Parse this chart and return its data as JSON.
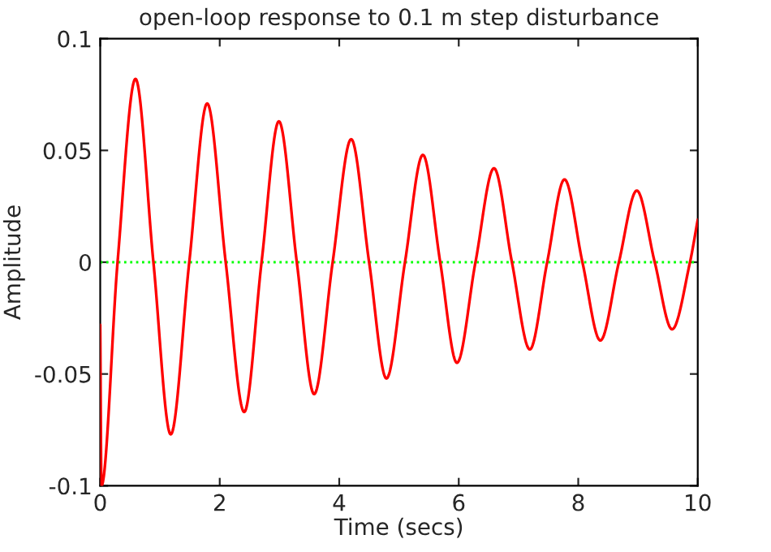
{
  "chart_data": {
    "type": "line",
    "title": "open-loop response to 0.1 m step disturbance",
    "xlabel": "Time (secs)",
    "ylabel": "Amplitude",
    "xlim": [
      0,
      10
    ],
    "xticks": [
      0,
      2,
      4,
      6,
      8,
      10
    ],
    "ylim": [
      -0.1,
      0.1
    ],
    "yticks": [
      -0.1,
      -0.05,
      0,
      0.05,
      0.1
    ],
    "grid": false,
    "line_style": "solid",
    "ref_lines": [
      {
        "axis": "y",
        "value": 0,
        "label": null,
        "color": "#00ff00",
        "line_style": "dotted"
      }
    ],
    "series": [
      {
        "color": "#ff0000",
        "x": [
          0,
          0.02,
          0.29,
          0.59,
          0.89,
          1.18,
          1.49,
          1.79,
          2.1,
          2.41,
          2.7,
          2.99,
          3.29,
          3.58,
          3.89,
          4.2,
          4.5,
          4.79,
          5.1,
          5.4,
          5.69,
          5.97,
          6.28,
          6.59,
          6.89,
          7.19,
          7.48,
          7.77,
          8.07,
          8.37,
          8.68,
          8.98,
          9.28,
          9.57,
          9.87,
          10
        ],
        "values": [
          -0.028,
          -0.1,
          0,
          0.082,
          0,
          -0.077,
          0,
          0.071,
          0,
          -0.067,
          0,
          0.063,
          0,
          -0.059,
          0,
          0.055,
          0,
          -0.052,
          0,
          0.048,
          0,
          -0.045,
          0,
          0.042,
          0,
          -0.039,
          0,
          0.037,
          0,
          -0.035,
          0,
          0.032,
          0,
          -0.03,
          0,
          0.019
        ]
      }
    ]
  }
}
